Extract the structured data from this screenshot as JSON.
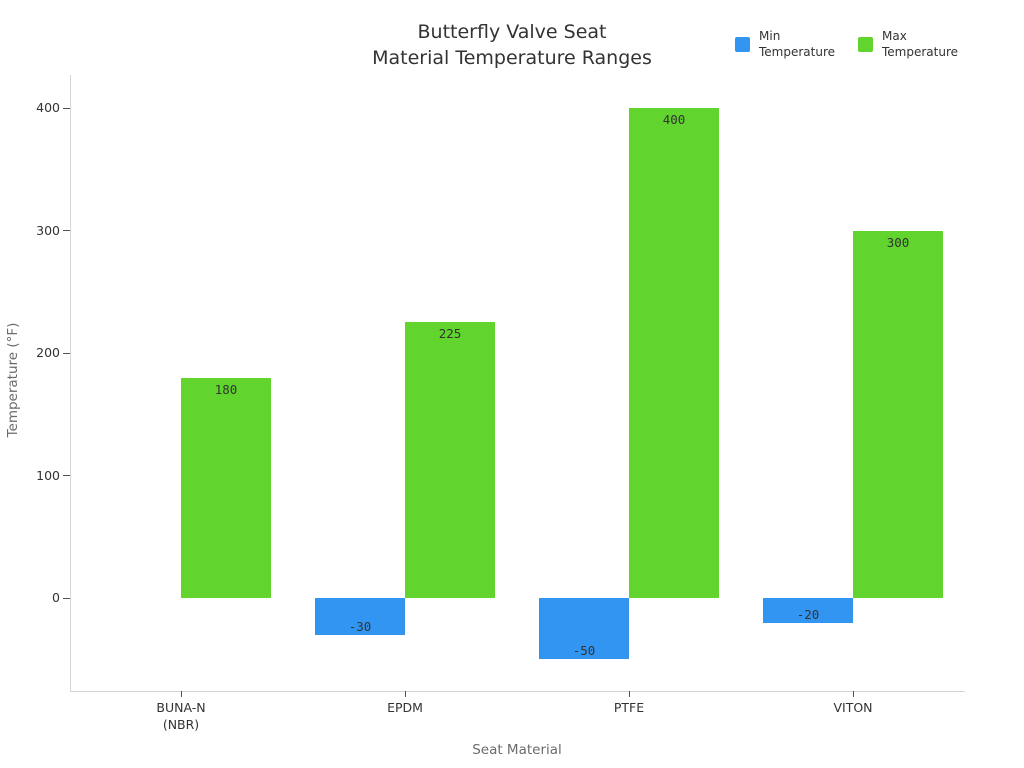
{
  "title": {
    "line1": "Butterfly Valve Seat",
    "line2": "Material Temperature Ranges"
  },
  "legend": [
    {
      "line1": "Min",
      "line2": "Temperature",
      "color": "#3295f2"
    },
    {
      "line1": "Max",
      "line2": "Temperature",
      "color": "#61d42e"
    }
  ],
  "axes": {
    "x_title": "Seat Material",
    "y_title": "Temperature (°F)"
  },
  "chart_data": {
    "type": "bar",
    "title": "Butterfly Valve Seat\nMaterial Temperature Ranges",
    "categories": [
      "BUNA-N\n(NBR)",
      "EPDM",
      "PTFE",
      "VITON"
    ],
    "series": [
      {
        "name": "Min Temperature",
        "color": "#3295f2",
        "values": [
          0,
          -30,
          -50,
          -20
        ],
        "labels": [
          "",
          "-30",
          "-50",
          "-20"
        ]
      },
      {
        "name": "Max Temperature",
        "color": "#61d42e",
        "values": [
          180,
          225,
          400,
          300
        ],
        "labels": [
          "180",
          "225",
          "400",
          "300"
        ]
      }
    ],
    "xlabel": "Seat Material",
    "ylabel": "Temperature (°F)",
    "yticks": [
      0,
      100,
      200,
      300,
      400
    ],
    "ylim": [
      -76,
      427
    ],
    "grid": false,
    "legend_position": "top-right"
  }
}
